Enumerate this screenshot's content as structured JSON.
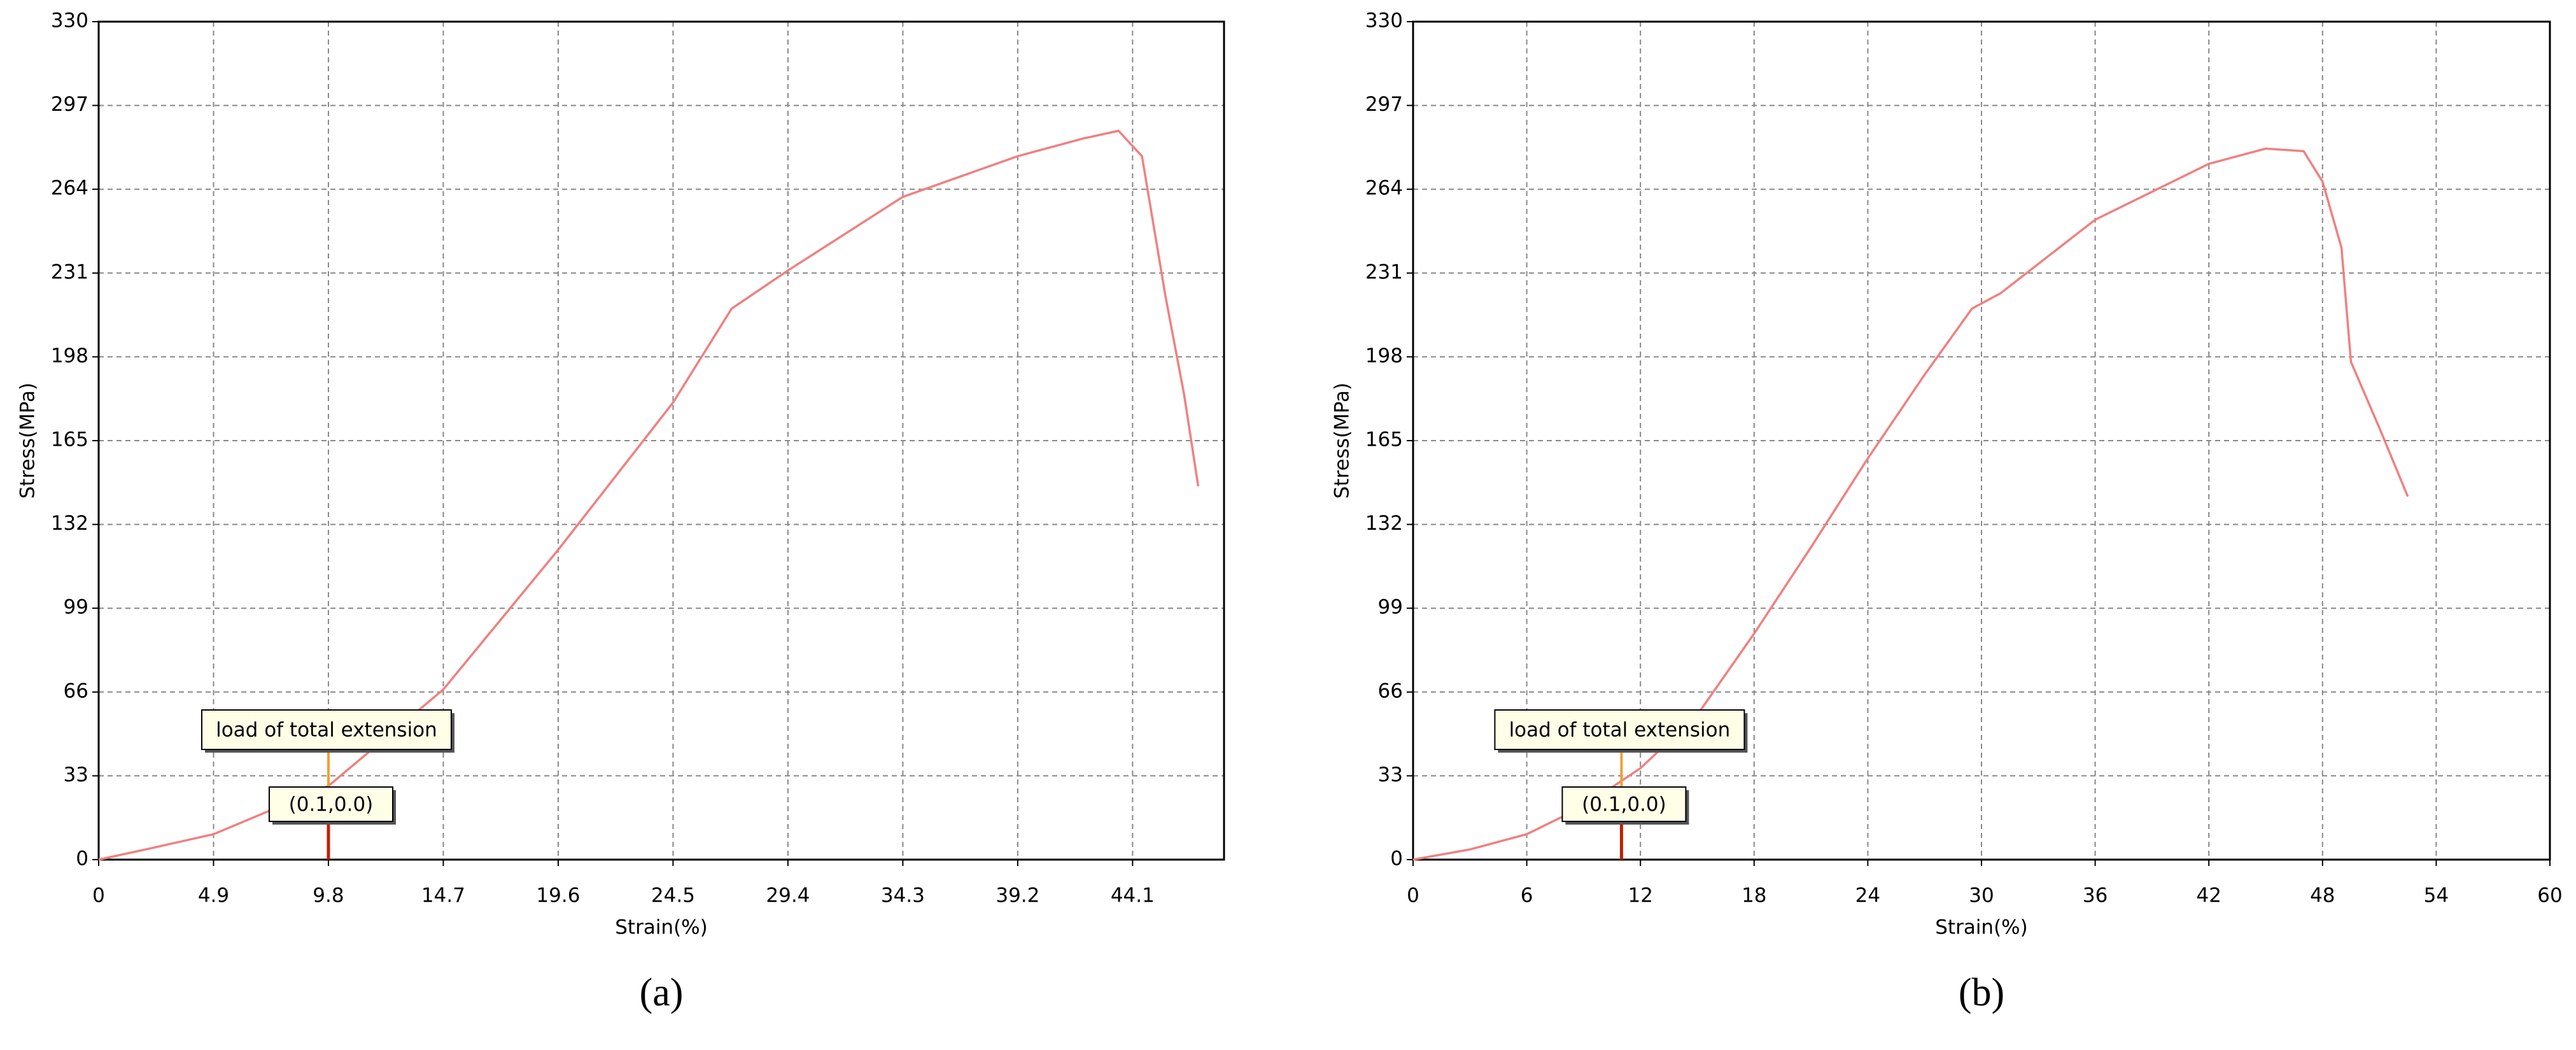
{
  "chart_data": [
    {
      "type": "line",
      "caption": "(a)",
      "xlabel": "Strain(%)",
      "ylabel": "Stress(MPa)",
      "xlim": [
        0,
        48
      ],
      "ylim": [
        0,
        330
      ],
      "xticks": [
        0,
        4.9,
        9.8,
        14.7,
        19.6,
        24.5,
        29.4,
        34.3,
        39.2,
        44.1
      ],
      "yticks": [
        0,
        33,
        66,
        99,
        132,
        165,
        198,
        231,
        264,
        297,
        330
      ],
      "grid": true,
      "color": "#f08080",
      "x": [
        0,
        2,
        4.9,
        9.8,
        14.7,
        19.6,
        24.5,
        27,
        29.4,
        34.3,
        39.2,
        42,
        43.5,
        44.5,
        45.5,
        46.3,
        46.9
      ],
      "values": [
        0,
        4,
        10,
        29,
        67,
        122,
        180,
        217,
        232,
        261,
        277,
        284,
        287,
        277,
        222,
        183,
        147
      ],
      "annotations": [
        "load of total extension",
        "(0.1,0.0)"
      ],
      "marker_x": 9.8
    },
    {
      "type": "line",
      "caption": "(b)",
      "xlabel": "Strain(%)",
      "ylabel": "Stress(MPa)",
      "xlim": [
        0,
        60
      ],
      "ylim": [
        0,
        330
      ],
      "xticks": [
        0,
        6,
        12,
        18,
        24,
        30,
        36,
        42,
        48,
        54,
        60
      ],
      "yticks": [
        0,
        33,
        66,
        99,
        132,
        165,
        198,
        231,
        264,
        297,
        330
      ],
      "grid": true,
      "color": "#f08080",
      "x": [
        0,
        3,
        6,
        9,
        12,
        15,
        18,
        21,
        24,
        27,
        29.5,
        31,
        36,
        42,
        45,
        47,
        48,
        49,
        49.5,
        51,
        52.5
      ],
      "values": [
        0,
        4,
        10,
        21,
        36,
        57,
        89,
        123,
        158,
        191,
        217,
        223,
        252,
        274,
        280,
        279,
        267,
        241,
        196,
        170,
        143
      ],
      "annotations": [
        "load of total extension",
        "(0.1,0.0)"
      ],
      "marker_x": 11
    }
  ]
}
